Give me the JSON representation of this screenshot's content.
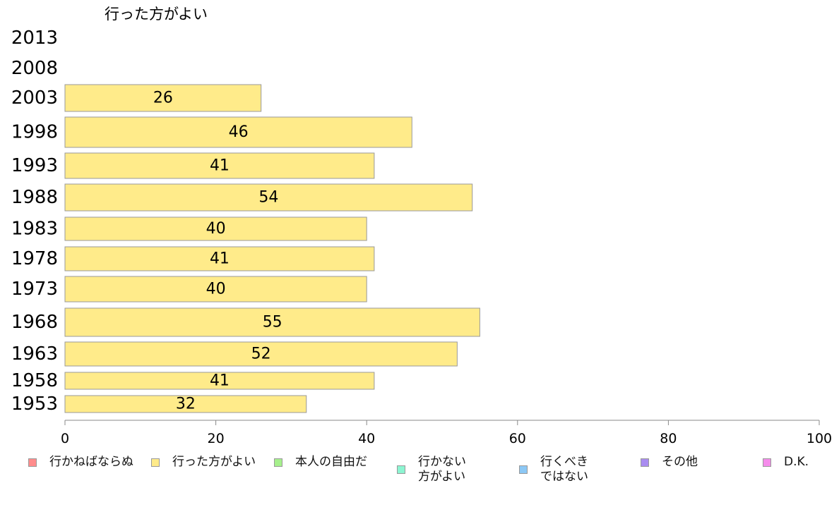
{
  "chart_data": {
    "type": "bar",
    "orientation": "horizontal",
    "title": "行った方がよい",
    "categories": [
      "2013",
      "2008",
      "2003",
      "1998",
      "1993",
      "1988",
      "1983",
      "1978",
      "1973",
      "1968",
      "1963",
      "1958",
      "1953"
    ],
    "series": [
      {
        "name": "行った方がよい",
        "values": [
          null,
          null,
          26,
          46,
          41,
          54,
          40,
          41,
          40,
          55,
          52,
          41,
          32
        ]
      }
    ],
    "xlim": [
      0,
      100
    ],
    "xticks": [
      0,
      20,
      40,
      60,
      80,
      100
    ],
    "grid": false,
    "legend_position": "bottom",
    "bar_color": "#FFEB8A",
    "legend": [
      {
        "label": "行かねばならぬ",
        "color": "#FF8C8C"
      },
      {
        "label": "行った方がよい",
        "color": "#FFEB8A"
      },
      {
        "label": "本人の自由だ",
        "color": "#A6F08C"
      },
      {
        "label": "行かない\n方がよい",
        "color": "#8CF5D2"
      },
      {
        "label": "行くべき\nではない",
        "color": "#8CC8F5"
      },
      {
        "label": "その他",
        "color": "#A98CF0"
      },
      {
        "label": "D.K.",
        "color": "#F58CEB"
      }
    ]
  }
}
